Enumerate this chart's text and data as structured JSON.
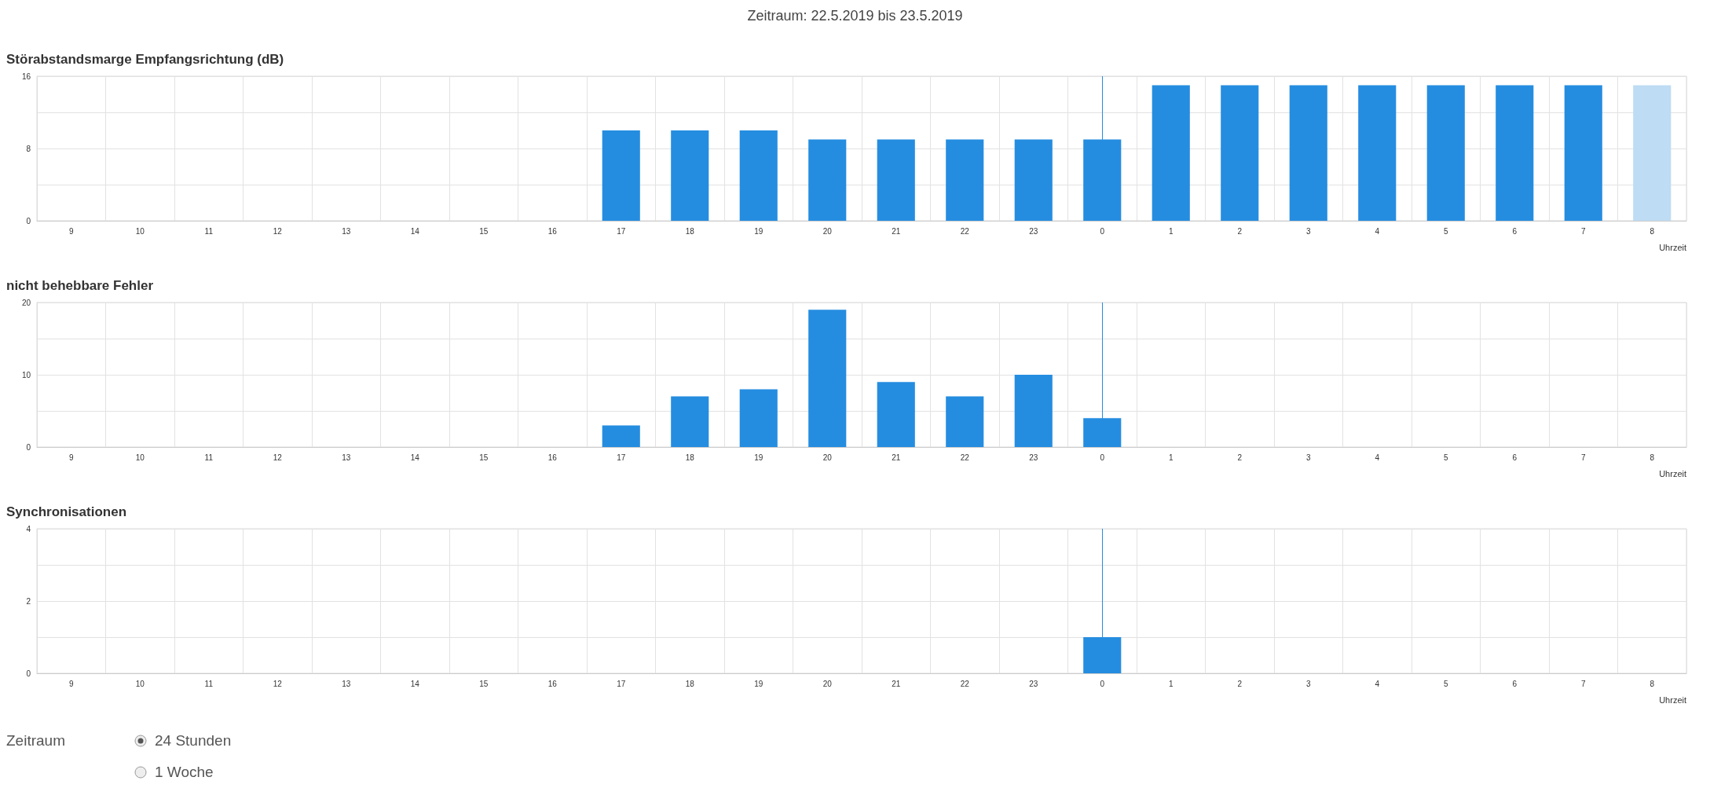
{
  "chart_data": [
    {
      "type": "other",
      "title": "Zeitraum: 22.5.2019 bis 23.5.2019"
    },
    {
      "type": "bar",
      "title": "Störabstandsmarge Empfangsrichtung (dB)",
      "xlabel": "Uhrzeit",
      "categories": [
        "9",
        "10",
        "11",
        "12",
        "13",
        "14",
        "15",
        "16",
        "17",
        "18",
        "19",
        "20",
        "21",
        "22",
        "23",
        "0",
        "1",
        "2",
        "3",
        "4",
        "5",
        "6",
        "7",
        "8"
      ],
      "values": [
        null,
        null,
        null,
        null,
        null,
        null,
        null,
        null,
        10,
        10,
        10,
        9,
        9,
        9,
        9,
        9,
        15,
        15,
        15,
        15,
        15,
        15,
        15,
        15
      ],
      "colors": [
        "#258de0",
        "#258de0",
        "#258de0",
        "#258de0",
        "#258de0",
        "#258de0",
        "#258de0",
        "#258de0",
        "#258de0",
        "#258de0",
        "#258de0",
        "#258de0",
        "#258de0",
        "#258de0",
        "#258de0",
        "#258de0",
        "#258de0",
        "#258de0",
        "#258de0",
        "#258de0",
        "#258de0",
        "#258de0",
        "#258de0",
        "#bedcf3"
      ],
      "ylim": [
        0,
        16
      ],
      "yticks": [
        0,
        {
          "value": 4,
          "label": null
        },
        8,
        {
          "value": 12,
          "label": null
        },
        16
      ],
      "grid": true,
      "ref_lines": [
        {
          "axis": "x",
          "value": "0",
          "color": "#258de0"
        }
      ]
    },
    {
      "type": "bar",
      "title": "nicht behebbare Fehler",
      "xlabel": "Uhrzeit",
      "categories": [
        "9",
        "10",
        "11",
        "12",
        "13",
        "14",
        "15",
        "16",
        "17",
        "18",
        "19",
        "20",
        "21",
        "22",
        "23",
        "0",
        "1",
        "2",
        "3",
        "4",
        "5",
        "6",
        "7",
        "8"
      ],
      "values": [
        null,
        null,
        null,
        null,
        null,
        null,
        null,
        null,
        3,
        7,
        8,
        19,
        9,
        7,
        10,
        4,
        null,
        null,
        null,
        null,
        null,
        null,
        null,
        null
      ],
      "color": "#258de0",
      "ylim": [
        0,
        20
      ],
      "yticks": [
        0,
        {
          "value": 5,
          "label": null
        },
        10,
        {
          "value": 15,
          "label": null
        },
        20
      ],
      "grid": true,
      "ref_lines": [
        {
          "axis": "x",
          "value": "0",
          "color": "#258de0"
        }
      ]
    },
    {
      "type": "bar",
      "title": "Synchronisationen",
      "xlabel": "Uhrzeit",
      "categories": [
        "9",
        "10",
        "11",
        "12",
        "13",
        "14",
        "15",
        "16",
        "17",
        "18",
        "19",
        "20",
        "21",
        "22",
        "23",
        "0",
        "1",
        "2",
        "3",
        "4",
        "5",
        "6",
        "7",
        "8"
      ],
      "values": [
        null,
        null,
        null,
        null,
        null,
        null,
        null,
        null,
        null,
        null,
        null,
        null,
        null,
        null,
        null,
        1,
        null,
        null,
        null,
        null,
        null,
        null,
        null,
        null
      ],
      "color": "#258de0",
      "ylim": [
        0,
        4
      ],
      "yticks": [
        0,
        {
          "value": 1,
          "label": null
        },
        2,
        {
          "value": 3,
          "label": null
        },
        4
      ],
      "grid": true,
      "ref_lines": [
        {
          "axis": "x",
          "value": "0",
          "color": "#258de0"
        }
      ]
    },
    {
      "type": "other",
      "annotations": [
        "Zeitraum",
        "24 Stunden",
        "1 Woche"
      ]
    }
  ]
}
